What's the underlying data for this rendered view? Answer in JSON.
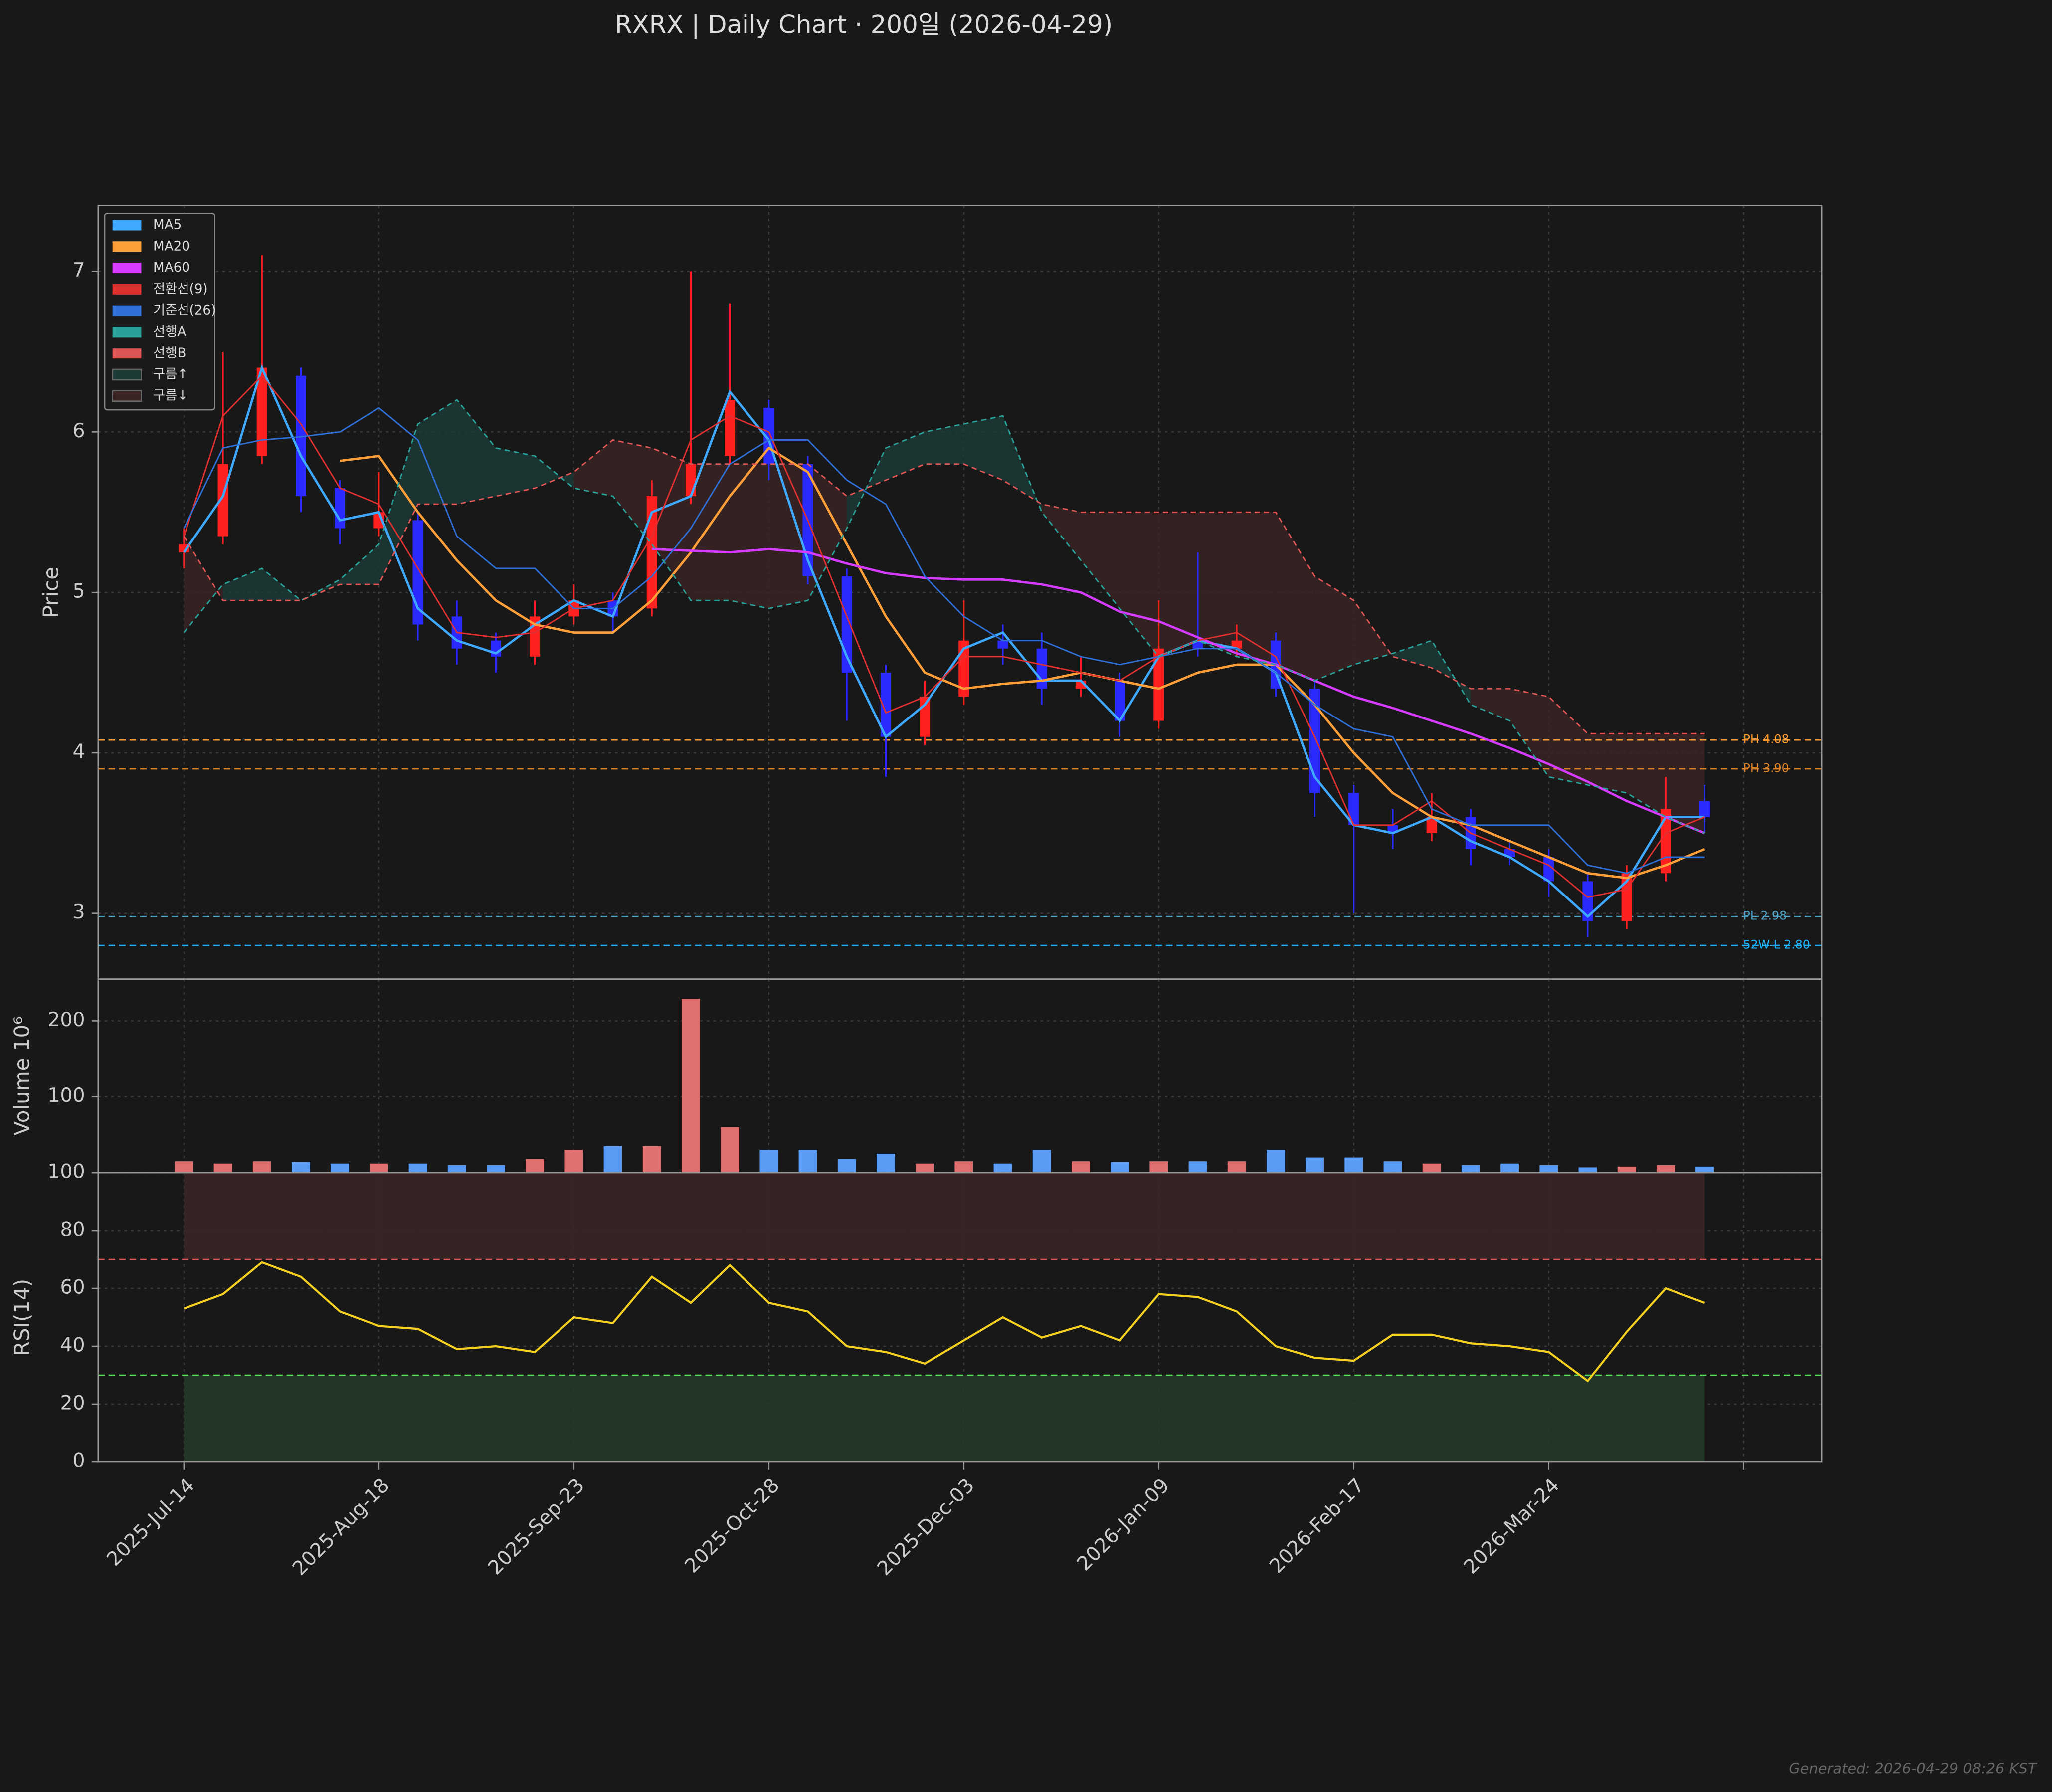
{
  "title": "RXRX  |  Daily Chart · 200일  (2026-04-29)",
  "footer": "Generated: 2026-04-29 08:26 KST",
  "chart_data": [
    {
      "type": "candlestick",
      "ylabel": "Price",
      "x": [
        0,
        5,
        10,
        15,
        20,
        25,
        30,
        35,
        40,
        45,
        50,
        55,
        60,
        65,
        70,
        75,
        80,
        85,
        90,
        95,
        100,
        105,
        110,
        115,
        120,
        125,
        130,
        135,
        140,
        145,
        150,
        155,
        160,
        165,
        170,
        175,
        180,
        185,
        190,
        195
      ],
      "open": [
        5.25,
        5.35,
        5.85,
        6.35,
        5.65,
        5.4,
        5.45,
        4.85,
        4.7,
        4.6,
        4.85,
        4.95,
        4.9,
        5.6,
        5.85,
        6.15,
        5.8,
        5.1,
        4.5,
        4.1,
        4.35,
        4.7,
        4.65,
        4.4,
        4.45,
        4.2,
        4.7,
        4.65,
        4.7,
        4.4,
        3.75,
        3.55,
        3.5,
        3.6,
        3.4,
        3.35,
        3.2,
        2.95,
        3.25,
        3.7
      ],
      "high": [
        5.4,
        6.5,
        7.1,
        6.4,
        5.7,
        5.75,
        5.5,
        4.95,
        4.75,
        4.95,
        5.05,
        5.0,
        5.7,
        7.0,
        6.8,
        6.2,
        5.85,
        5.15,
        4.55,
        4.45,
        4.95,
        4.8,
        4.75,
        4.6,
        4.5,
        4.95,
        5.25,
        4.8,
        4.75,
        4.45,
        3.8,
        3.65,
        3.75,
        3.65,
        3.45,
        3.4,
        3.25,
        3.3,
        3.85,
        3.8
      ],
      "low": [
        5.15,
        5.3,
        5.8,
        5.5,
        5.3,
        5.35,
        4.7,
        4.55,
        4.5,
        4.55,
        4.8,
        4.75,
        4.85,
        5.55,
        5.8,
        5.7,
        5.05,
        4.2,
        3.85,
        4.05,
        4.3,
        4.55,
        4.3,
        4.35,
        4.1,
        4.15,
        4.6,
        4.6,
        4.35,
        3.6,
        3.0,
        3.4,
        3.45,
        3.3,
        3.3,
        3.1,
        2.85,
        2.9,
        3.2,
        3.5
      ],
      "close": [
        5.3,
        5.8,
        6.4,
        5.6,
        5.4,
        5.5,
        4.8,
        4.65,
        4.6,
        4.85,
        4.95,
        4.85,
        5.6,
        5.8,
        6.2,
        5.8,
        5.1,
        4.5,
        4.1,
        4.35,
        4.7,
        4.65,
        4.4,
        4.45,
        4.2,
        4.65,
        4.65,
        4.7,
        4.4,
        3.75,
        3.55,
        3.5,
        3.6,
        3.4,
        3.35,
        3.2,
        2.95,
        3.25,
        3.65,
        3.6
      ],
      "up_color": "#ff2020",
      "down_color": "#2a2aff",
      "series": [
        {
          "name": "MA5",
          "color": "#3fa9ff",
          "values": [
            5.25,
            5.6,
            6.4,
            5.85,
            5.45,
            5.5,
            4.9,
            4.7,
            4.62,
            4.8,
            4.95,
            4.85,
            5.5,
            5.6,
            6.25,
            5.95,
            5.2,
            4.6,
            4.1,
            4.3,
            4.65,
            4.75,
            4.45,
            4.45,
            4.2,
            4.6,
            4.7,
            4.65,
            4.5,
            3.85,
            3.55,
            3.5,
            3.6,
            3.45,
            3.35,
            3.2,
            2.98,
            3.2,
            3.6,
            3.6
          ]
        },
        {
          "name": "MA20",
          "color": "#ff9f3a",
          "values": [
            null,
            null,
            null,
            null,
            5.82,
            5.85,
            5.5,
            5.2,
            4.95,
            4.8,
            4.75,
            4.75,
            4.95,
            5.25,
            5.6,
            5.9,
            5.75,
            5.3,
            4.85,
            4.5,
            4.4,
            4.43,
            4.45,
            4.5,
            4.45,
            4.4,
            4.5,
            4.55,
            4.55,
            4.3,
            4.0,
            3.75,
            3.6,
            3.55,
            3.45,
            3.35,
            3.25,
            3.22,
            3.3,
            3.4
          ]
        },
        {
          "name": "MA60",
          "color": "#d63cff",
          "values": [
            null,
            null,
            null,
            null,
            null,
            null,
            null,
            null,
            null,
            null,
            null,
            null,
            5.27,
            5.26,
            5.25,
            5.27,
            5.25,
            5.18,
            5.12,
            5.09,
            5.08,
            5.08,
            5.05,
            5.0,
            4.88,
            4.82,
            4.72,
            4.62,
            4.55,
            4.45,
            4.35,
            4.28,
            4.2,
            4.12,
            4.03,
            3.93,
            3.82,
            3.7,
            3.6,
            3.5
          ]
        },
        {
          "name": "전환선(9)",
          "color": "#e03030",
          "values": [
            5.35,
            6.1,
            6.35,
            6.05,
            5.65,
            5.55,
            5.15,
            4.75,
            4.72,
            4.75,
            4.9,
            4.95,
            5.35,
            5.95,
            6.1,
            6.0,
            5.45,
            4.85,
            4.25,
            4.35,
            4.6,
            4.6,
            4.55,
            4.5,
            4.45,
            4.6,
            4.7,
            4.75,
            4.6,
            4.1,
            3.55,
            3.55,
            3.7,
            3.5,
            3.4,
            3.3,
            3.1,
            3.15,
            3.5,
            3.6
          ]
        },
        {
          "name": "기준선(26)",
          "color": "#2f6fd8",
          "values": [
            5.4,
            5.9,
            5.95,
            5.97,
            6.0,
            6.15,
            5.95,
            5.35,
            5.15,
            5.15,
            4.9,
            4.9,
            5.1,
            5.4,
            5.8,
            5.95,
            5.95,
            5.7,
            5.55,
            5.1,
            4.85,
            4.7,
            4.7,
            4.6,
            4.55,
            4.6,
            4.65,
            4.65,
            4.5,
            4.3,
            4.15,
            4.1,
            3.65,
            3.55,
            3.55,
            3.55,
            3.3,
            3.25,
            3.35,
            3.35
          ]
        },
        {
          "name": "선행A",
          "color": "#2aa198",
          "dashed": true,
          "values": [
            4.75,
            5.05,
            5.15,
            4.95,
            5.08,
            5.3,
            6.05,
            6.2,
            5.9,
            5.85,
            5.65,
            5.6,
            5.3,
            4.95,
            4.95,
            4.9,
            4.95,
            5.4,
            5.9,
            6.0,
            6.05,
            6.1,
            5.5,
            5.2,
            4.9,
            4.6,
            4.7,
            4.6,
            4.55,
            4.45,
            4.55,
            4.62,
            4.7,
            4.3,
            4.2,
            3.85,
            3.8,
            3.75,
            3.6,
            3.5
          ]
        },
        {
          "name": "선행B",
          "color": "#e05555",
          "dashed": true,
          "values": [
            5.35,
            4.95,
            4.95,
            4.95,
            5.05,
            5.05,
            5.55,
            5.55,
            5.6,
            5.65,
            5.75,
            5.95,
            5.9,
            5.8,
            5.8,
            5.8,
            5.8,
            5.6,
            5.7,
            5.8,
            5.8,
            5.7,
            5.55,
            5.5,
            5.5,
            5.5,
            5.5,
            5.5,
            5.5,
            5.1,
            4.95,
            4.6,
            4.53,
            4.4,
            4.4,
            4.35,
            4.12,
            4.12,
            4.12,
            4.12
          ]
        }
      ],
      "cloud": [
        {
          "name": "구름↑",
          "color": "#1d3a36"
        },
        {
          "name": "구름↓",
          "color": "#3a2323"
        }
      ],
      "hlines": [
        {
          "value": 4.08,
          "label": "PH 4.08",
          "color": "#ff9a2e"
        },
        {
          "value": 3.9,
          "label": "PH 3.90",
          "color": "#e0862a"
        },
        {
          "value": 2.98,
          "label": "PL 2.98",
          "color": "#4fa3c7"
        },
        {
          "value": 2.8,
          "label": "52W-L 2.80",
          "color": "#1fb6ff"
        }
      ],
      "ylim": [
        2.59,
        7.41
      ],
      "yticks": [
        3,
        4,
        5,
        6,
        7
      ],
      "grid": true,
      "legend": "upper left"
    },
    {
      "type": "bar",
      "ylabel": "Volume  10⁶",
      "values": [
        15,
        12,
        15,
        14,
        12,
        12,
        12,
        10,
        10,
        18,
        30,
        35,
        35,
        229,
        60,
        30,
        30,
        18,
        25,
        12,
        15,
        12,
        30,
        15,
        14,
        15,
        15,
        15,
        30,
        20,
        20,
        15,
        12,
        10,
        12,
        10,
        7,
        8,
        10,
        8
      ],
      "up_color": "#e07070",
      "down_color": "#5a9cf5",
      "ylim": [
        0,
        255
      ],
      "yticks": [
        0,
        100,
        200
      ],
      "grid": true
    },
    {
      "type": "line",
      "ylabel": "RSI(14)",
      "color": "#f5d020",
      "values": [
        53,
        58,
        69,
        64,
        52,
        47,
        46,
        39,
        40,
        38,
        50,
        48,
        64,
        55,
        68,
        55,
        52,
        40,
        38,
        34,
        42,
        50,
        43,
        47,
        42,
        58,
        57,
        52,
        40,
        36,
        35,
        44,
        44,
        41,
        40,
        38,
        28,
        45,
        60,
        55
      ],
      "levels": [
        {
          "value": 70,
          "color": "#e05555",
          "zone": "#3a2525"
        },
        {
          "value": 30,
          "color": "#55dd55",
          "zone": "#223a28"
        }
      ],
      "ylim": [
        0,
        100
      ],
      "yticks": [
        0,
        20,
        40,
        60,
        80,
        100
      ],
      "grid": true,
      "xlim": [
        -11,
        210
      ],
      "xticks": [
        {
          "value": 0,
          "label": "2025-Jul-14"
        },
        {
          "value": 25,
          "label": "2025-Aug-18"
        },
        {
          "value": 50,
          "label": "2025-Sep-23"
        },
        {
          "value": 75,
          "label": "2025-Oct-28"
        },
        {
          "value": 100,
          "label": "2025-Dec-03"
        },
        {
          "value": 125,
          "label": "2026-Jan-09"
        },
        {
          "value": 150,
          "label": "2026-Feb-17"
        },
        {
          "value": 175,
          "label": "2026-Mar-24"
        },
        {
          "value": 200,
          "label": null
        }
      ]
    }
  ]
}
